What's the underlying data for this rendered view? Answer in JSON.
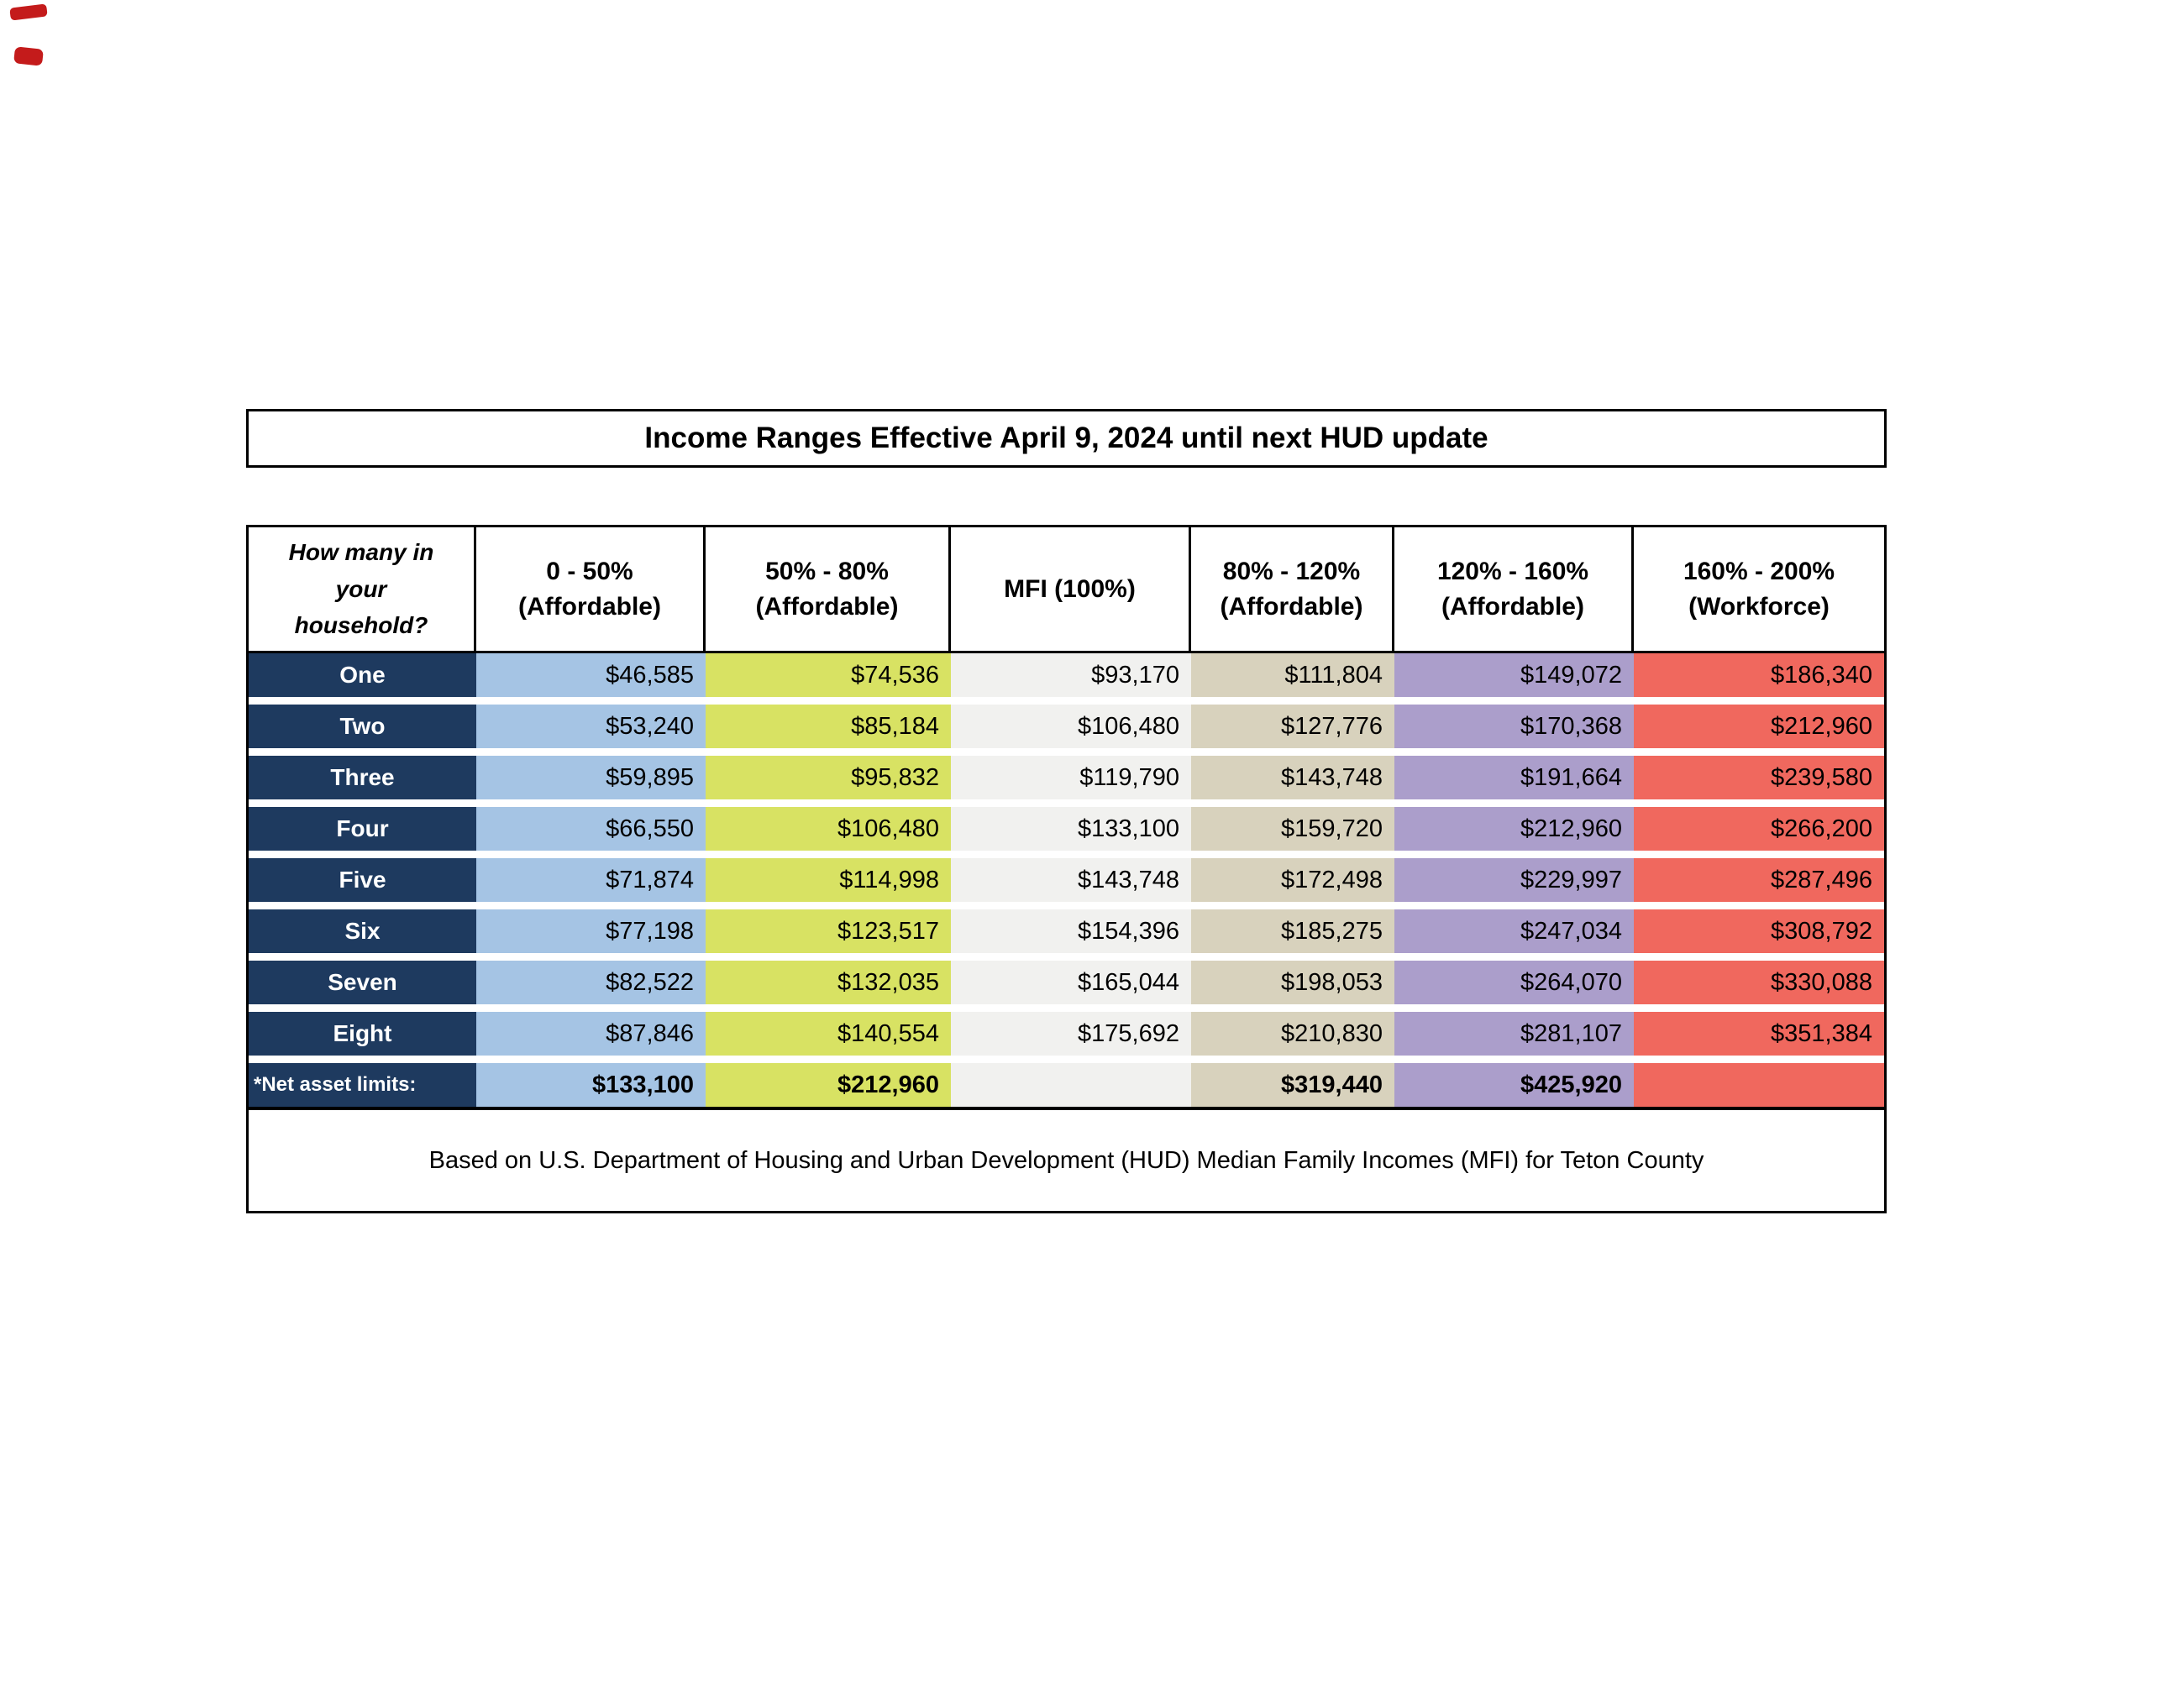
{
  "title": "Income Ranges Effective April 9, 2024 until next HUD update",
  "table": {
    "corner_header": "How many in your household?",
    "column_headers": [
      {
        "range": "0 - 50%",
        "qualifier": "(Affordable)"
      },
      {
        "range": "50% - 80%",
        "qualifier": "(Affordable)"
      },
      {
        "range": "MFI (100%)",
        "qualifier": ""
      },
      {
        "range": "80% - 120%",
        "qualifier": "(Affordable)"
      },
      {
        "range": "120% - 160%",
        "qualifier": "(Affordable)"
      },
      {
        "range": "160% - 200%",
        "qualifier": "(Workforce)"
      }
    ],
    "rows": [
      {
        "label": "One",
        "values": [
          "$46,585",
          "$74,536",
          "$93,170",
          "$111,804",
          "$149,072",
          "$186,340"
        ]
      },
      {
        "label": "Two",
        "values": [
          "$53,240",
          "$85,184",
          "$106,480",
          "$127,776",
          "$170,368",
          "$212,960"
        ]
      },
      {
        "label": "Three",
        "values": [
          "$59,895",
          "$95,832",
          "$119,790",
          "$143,748",
          "$191,664",
          "$239,580"
        ]
      },
      {
        "label": "Four",
        "values": [
          "$66,550",
          "$106,480",
          "$133,100",
          "$159,720",
          "$212,960",
          "$266,200"
        ]
      },
      {
        "label": "Five",
        "values": [
          "$71,874",
          "$114,998",
          "$143,748",
          "$172,498",
          "$229,997",
          "$287,496"
        ]
      },
      {
        "label": "Six",
        "values": [
          "$77,198",
          "$123,517",
          "$154,396",
          "$185,275",
          "$247,034",
          "$308,792"
        ]
      },
      {
        "label": "Seven",
        "values": [
          "$82,522",
          "$132,035",
          "$165,044",
          "$198,053",
          "$264,070",
          "$330,088"
        ]
      },
      {
        "label": "Eight",
        "values": [
          "$87,846",
          "$140,554",
          "$175,692",
          "$210,830",
          "$281,107",
          "$351,384"
        ]
      }
    ],
    "net_asset_row": {
      "label": "*Net asset limits:",
      "values": [
        "$133,100",
        "$212,960",
        "",
        "$319,440",
        "$425,920",
        ""
      ]
    },
    "footnote": "Based on U.S. Department of Housing and Urban Development (HUD) Median Family Incomes (MFI) for Teton County"
  },
  "colors": {
    "navy": "#1e3a5f",
    "blue": "#a5c4e4",
    "green": "#d8e263",
    "gray": "#f1f1ef",
    "tan": "#d8d2bd",
    "purple": "#ab9ecb",
    "red": "#f0685e",
    "border": "#000000",
    "accent_mark": "#c41b1b"
  }
}
